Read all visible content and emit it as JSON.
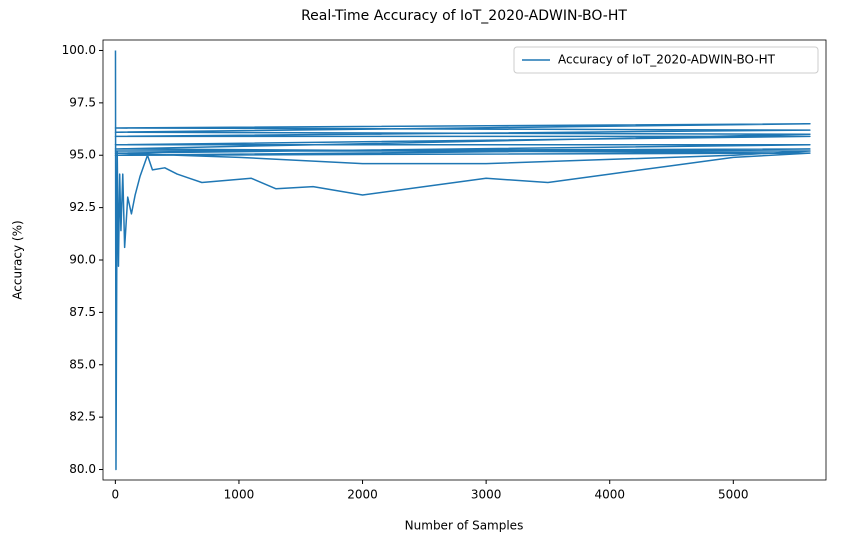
{
  "chart_data": {
    "type": "line",
    "title": "Real-Time Accuracy of IoT_2020-ADWIN-BO-HT",
    "x_label": "Number of Samples",
    "y_label": "Accuracy (%)",
    "x": [
      1,
      5,
      15,
      25,
      35,
      45,
      60,
      75,
      100,
      130,
      160,
      200,
      260,
      300,
      400,
      500,
      600,
      700,
      900,
      1100,
      1300,
      1600,
      2000,
      2500,
      3000,
      3500,
      4000,
      4500,
      5000,
      5620,
      0,
      5620,
      0,
      5620,
      0,
      5620,
      0,
      5620,
      0,
      5620,
      0,
      500,
      1000,
      2000,
      3000,
      4000,
      5000,
      5620,
      0,
      5620,
      0,
      5620
    ],
    "series": [
      {
        "name": "Accuracy of IoT_2020-ADWIN-BO-HT",
        "color": "#1f77b4",
        "values": [
          100,
          80,
          95.2,
          89.7,
          94.1,
          91.4,
          94.1,
          90.6,
          93.0,
          92.2,
          93.1,
          94.0,
          95.0,
          94.3,
          94.4,
          94.1,
          93.9,
          93.7,
          93.8,
          93.9,
          93.4,
          93.5,
          93.1,
          93.5,
          93.9,
          93.7,
          94.1,
          94.5,
          94.9,
          95.1,
          95.3,
          96.0,
          96.1,
          96.5,
          96.3,
          96.2,
          95.9,
          95.9,
          95.5,
          95.5,
          95.1,
          95.0,
          94.9,
          94.6,
          94.6,
          94.8,
          95.0,
          95.2,
          95.2,
          95.3,
          95.0,
          95.1
        ]
      }
    ],
    "xlim": [
      -100,
      5750
    ],
    "ylim": [
      79.5,
      100.5
    ],
    "xticks": [
      0,
      1000,
      2000,
      3000,
      4000,
      5000
    ],
    "yticks": [
      {
        "value": 80,
        "label": "80.0"
      },
      {
        "value": 82.5,
        "label": "82.5"
      },
      {
        "value": 85,
        "label": "85.0"
      },
      {
        "value": 87.5,
        "label": "87.5"
      },
      {
        "value": 90,
        "label": "90.0"
      },
      {
        "value": 92.5,
        "label": "92.5"
      },
      {
        "value": 95,
        "label": "95.0"
      },
      {
        "value": 97.5,
        "label": "97.5"
      },
      {
        "value": 100,
        "label": "100.0"
      }
    ],
    "legend": "upper right",
    "grid": false
  }
}
